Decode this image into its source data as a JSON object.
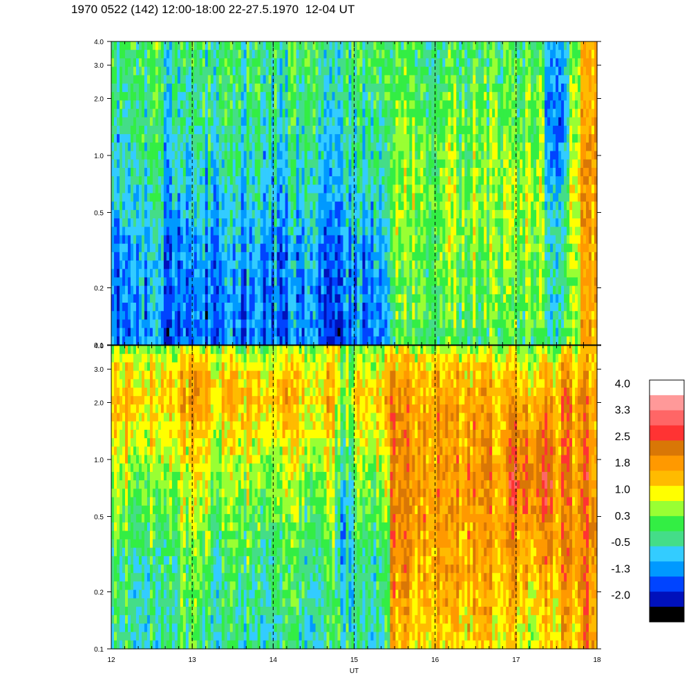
{
  "title": "1970 0522 (142) 12:00-18:00 22-27.5.1970  12-04 UT",
  "chart_data": [
    {
      "type": "heatmap",
      "panel": "top",
      "x_axis": {
        "range": [
          12,
          18
        ]
      },
      "y_axis": {
        "scale": "log",
        "range": [
          0.1,
          4.0
        ],
        "tick_labels": [
          "0.1",
          "0.2",
          "0.5",
          "1.0",
          "2.0",
          "3.0",
          "4.0"
        ]
      },
      "grid": {
        "x_dashed_lines_at": [
          13,
          14,
          15,
          16,
          17
        ]
      },
      "regions": [
        {
          "x_range": [
            12.0,
            15.45
          ],
          "level_by_freq": [
            [
              0.1,
              -0.9
            ],
            [
              0.3,
              -0.7
            ],
            [
              0.6,
              -0.3
            ],
            [
              1.5,
              0.0
            ],
            [
              4.0,
              0.2
            ]
          ]
        },
        {
          "x_range": [
            15.45,
            17.8
          ],
          "level_by_freq": [
            [
              0.1,
              0.4
            ],
            [
              0.3,
              0.7
            ],
            [
              0.6,
              0.8
            ],
            [
              1.5,
              0.6
            ],
            [
              4.0,
              0.3
            ]
          ]
        },
        {
          "x_range": [
            17.35,
            17.65
          ],
          "level_by_freq": [
            [
              0.1,
              0.3
            ],
            [
              0.5,
              0.1
            ],
            [
              1.5,
              -0.6
            ],
            [
              4.0,
              -0.2
            ]
          ]
        },
        {
          "x_range": [
            17.8,
            18.0
          ],
          "level_by_freq": [
            [
              0.1,
              1.6
            ],
            [
              1.0,
              1.8
            ],
            [
              4.0,
              1.4
            ]
          ]
        }
      ]
    },
    {
      "type": "heatmap",
      "panel": "bottom",
      "x_axis": {
        "range": [
          12,
          18
        ],
        "label": "UT",
        "tick_labels": [
          "12",
          "13",
          "14",
          "15",
          "16",
          "17",
          "18"
        ]
      },
      "y_axis": {
        "scale": "log",
        "range": [
          0.1,
          4.0
        ],
        "tick_labels": [
          "0.1",
          "0.2",
          "0.5",
          "1.0",
          "2.0",
          "3.0",
          "4.0"
        ]
      },
      "grid": {
        "x_dashed_lines_at": [
          13,
          14,
          15,
          16,
          17
        ]
      },
      "regions": [
        {
          "x_range": [
            12.0,
            15.45
          ],
          "level_by_freq": [
            [
              0.1,
              0.1
            ],
            [
              0.3,
              0.3
            ],
            [
              0.6,
              0.7
            ],
            [
              1.0,
              1.0
            ],
            [
              2.0,
              1.6
            ],
            [
              3.0,
              1.4
            ],
            [
              4.0,
              0.8
            ]
          ]
        },
        {
          "x_range": [
            14.75,
            15.0
          ],
          "level_by_freq": [
            [
              0.1,
              0.2
            ],
            [
              0.4,
              -0.3
            ],
            [
              1.0,
              0.3
            ],
            [
              2.5,
              1.0
            ],
            [
              4.0,
              0.6
            ]
          ]
        },
        {
          "x_range": [
            15.45,
            17.8
          ],
          "level_by_freq": [
            [
              0.1,
              1.4
            ],
            [
              0.2,
              1.8
            ],
            [
              0.5,
              2.0
            ],
            [
              1.0,
              2.0
            ],
            [
              2.0,
              1.9
            ],
            [
              3.0,
              1.6
            ],
            [
              4.0,
              0.9
            ]
          ]
        },
        {
          "x_range": [
            16.9,
            17.5
          ],
          "level_by_freq": [
            [
              0.1,
              1.2
            ],
            [
              0.4,
              1.9
            ],
            [
              0.7,
              2.4
            ],
            [
              1.2,
              2.2
            ],
            [
              2.0,
              1.8
            ],
            [
              4.0,
              0.8
            ]
          ]
        },
        {
          "x_range": [
            17.8,
            18.0
          ],
          "level_by_freq": [
            [
              0.1,
              2.1
            ],
            [
              1.0,
              2.2
            ],
            [
              4.0,
              1.6
            ]
          ]
        }
      ]
    }
  ],
  "colorbar": {
    "labels": [
      "4.0",
      "3.3",
      "2.5",
      "1.8",
      "1.0",
      "0.3",
      "-0.5",
      "-1.3",
      "-2.0"
    ],
    "colors": [
      "#ffffff",
      "#ff9999",
      "#ff6666",
      "#ff3333",
      "#d97706",
      "#ff9900",
      "#ffbb00",
      "#ffff00",
      "#99ff33",
      "#33ee44",
      "#44dd88",
      "#33ccff",
      "#0099ff",
      "#0044ff",
      "#0011bb",
      "#000000"
    ]
  }
}
